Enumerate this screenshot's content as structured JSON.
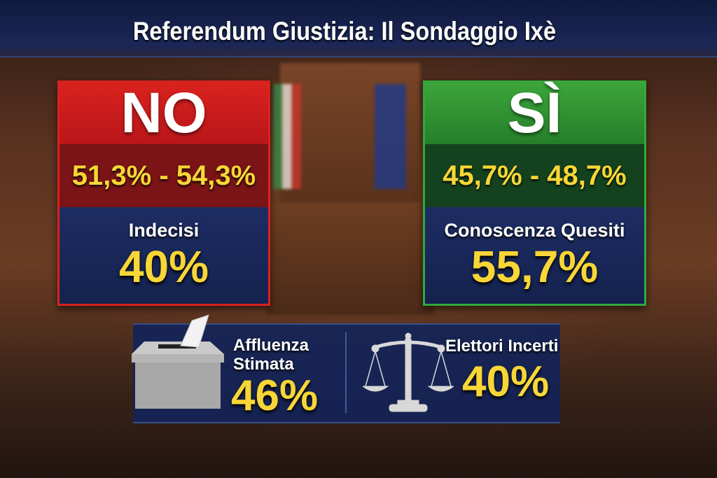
{
  "title": "Referendum Giustizia: Il Sondaggio Ixè",
  "no": {
    "label": "NO",
    "range": "51,3% - 54,3%",
    "sub_label": "Indecisi",
    "sub_value": "40%"
  },
  "si": {
    "label": "SÌ",
    "range": "45,7% - 48,7%",
    "sub_label": "Conoscenza Quesiti",
    "sub_value": "55,7%"
  },
  "turnout": {
    "label_line1": "Affluenza",
    "label_line2": "Stimata",
    "value": "46%",
    "icon": "ballot-box-icon"
  },
  "uncertain": {
    "label": "Elettori Incerti",
    "value": "40%",
    "icon": "scales-of-justice-icon"
  },
  "colors": {
    "no": "#d8221f",
    "si": "#33a83a",
    "value_yellow": "#f7d636",
    "navy": "#1b2757"
  }
}
